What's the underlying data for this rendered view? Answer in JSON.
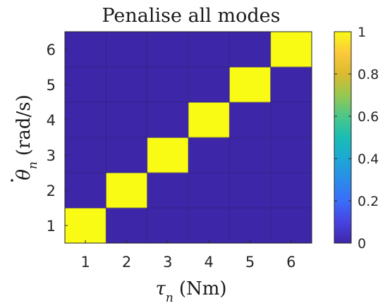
{
  "chart_data": {
    "type": "heatmap",
    "title": "Penalise all modes",
    "x": [
      1,
      2,
      3,
      4,
      5,
      6
    ],
    "y": [
      1,
      2,
      3,
      4,
      5,
      6
    ],
    "x_tick_labels": [
      "1",
      "2",
      "3",
      "4",
      "5",
      "6"
    ],
    "y_tick_labels": [
      "1",
      "2",
      "3",
      "4",
      "5",
      "6"
    ],
    "xlabel_symbol": "τ",
    "xlabel_subscript": "n",
    "xlabel_unit": "(Nm)",
    "ylabel_symbol": "θ",
    "ylabel_subscript": "n",
    "ylabel_unit": "(rad/s)",
    "matrix": [
      [
        1,
        0,
        0,
        0,
        0,
        0
      ],
      [
        0,
        1,
        0,
        0,
        0,
        0
      ],
      [
        0,
        0,
        1,
        0,
        0,
        0
      ],
      [
        0,
        0,
        0,
        1,
        0,
        0
      ],
      [
        0,
        0,
        0,
        0,
        1,
        0
      ],
      [
        0,
        0,
        0,
        0,
        0,
        1
      ]
    ],
    "colorbar": {
      "limits": [
        0,
        1
      ],
      "ticks": [
        0,
        0.2,
        0.4,
        0.6,
        0.8,
        1
      ],
      "tick_labels": [
        "0",
        "0.2",
        "0.4",
        "0.6",
        "0.8",
        "1"
      ],
      "colormap": "parula",
      "low_color": "#3e26a8",
      "high_color": "#f9fb15"
    },
    "grid": true,
    "legend": "none"
  }
}
